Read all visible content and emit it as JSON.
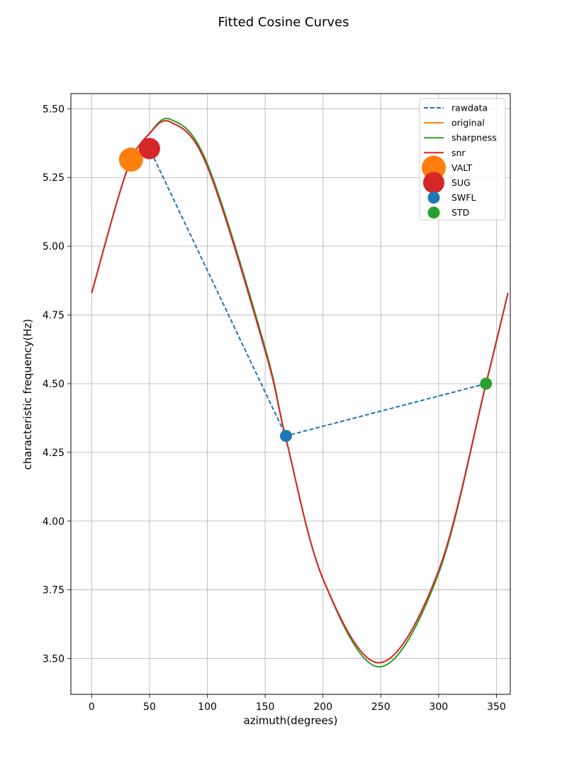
{
  "chart_data": {
    "type": "line",
    "title": "Fitted Cosine Curves",
    "xlabel": "azimuth(degrees)",
    "ylabel": "characteristic frequency(Hz)",
    "xlim": [
      -18,
      362
    ],
    "ylim": [
      3.37,
      5.555
    ],
    "xticks": [
      0,
      50,
      100,
      150,
      200,
      250,
      300,
      350
    ],
    "xtick_labels": [
      "0",
      "50",
      "100",
      "150",
      "200",
      "250",
      "300",
      "350"
    ],
    "yticks": [
      3.5,
      3.75,
      4.0,
      4.25,
      4.5,
      4.75,
      5.0,
      5.25,
      5.5
    ],
    "ytick_labels": [
      "3.50",
      "3.75",
      "4.00",
      "4.25",
      "4.50",
      "4.75",
      "5.00",
      "5.25",
      "5.50"
    ],
    "grid": true,
    "legend_position": "top-right",
    "series": [
      {
        "name": "rawdata",
        "kind": "line",
        "style": "dashed",
        "color": "#1f77b4",
        "x": [
          34,
          50,
          168,
          341
        ],
        "y": [
          5.315,
          5.355,
          4.31,
          4.5
        ]
      },
      {
        "name": "original",
        "kind": "curve",
        "style": "solid",
        "color": "#ff7f0e",
        "x": [
          0,
          30,
          50,
          69,
          100,
          150,
          168,
          200,
          249,
          300,
          341,
          360
        ],
        "y": [
          4.83,
          5.27,
          5.41,
          5.45,
          5.29,
          4.62,
          4.3,
          3.79,
          3.485,
          3.82,
          4.5,
          4.83
        ]
      },
      {
        "name": "sharpness",
        "kind": "curve",
        "style": "solid",
        "color": "#2ca02c",
        "x": [
          0,
          30,
          50,
          69,
          100,
          150,
          168,
          200,
          249,
          300,
          341,
          360
        ],
        "y": [
          4.83,
          5.27,
          5.41,
          5.46,
          5.3,
          4.63,
          4.3,
          3.79,
          3.47,
          3.81,
          4.5,
          4.83
        ]
      },
      {
        "name": "snr",
        "kind": "curve",
        "style": "solid",
        "color": "#d62728",
        "x": [
          0,
          30,
          50,
          69,
          100,
          150,
          168,
          200,
          249,
          300,
          341,
          360
        ],
        "y": [
          4.83,
          5.27,
          5.41,
          5.45,
          5.29,
          4.62,
          4.3,
          3.79,
          3.485,
          3.82,
          4.5,
          4.83
        ]
      },
      {
        "name": "VALT",
        "kind": "marker",
        "color": "#ff7f0e",
        "size": "large",
        "x": [
          34
        ],
        "y": [
          5.315
        ]
      },
      {
        "name": "SUG",
        "kind": "marker",
        "color": "#d62728",
        "size": "medium",
        "x": [
          50
        ],
        "y": [
          5.355
        ]
      },
      {
        "name": "SWFL",
        "kind": "marker",
        "color": "#1f77b4",
        "size": "small",
        "x": [
          168
        ],
        "y": [
          4.31
        ]
      },
      {
        "name": "STD",
        "kind": "marker",
        "color": "#2ca02c",
        "size": "small",
        "x": [
          341
        ],
        "y": [
          4.5
        ]
      }
    ]
  }
}
